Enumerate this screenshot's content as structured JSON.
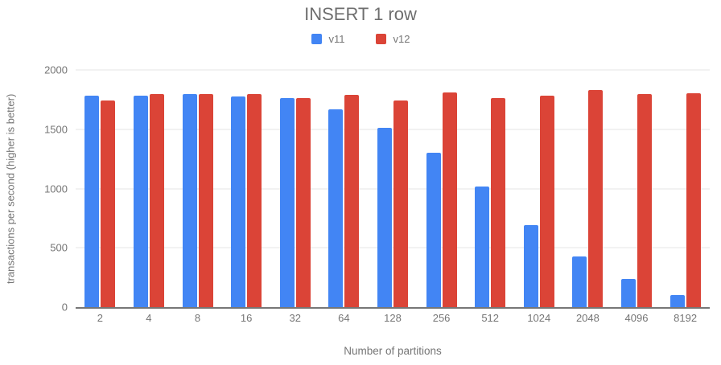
{
  "chart_data": {
    "type": "bar",
    "title": "INSERT 1 row",
    "xlabel": "Number of partitions",
    "ylabel": "transactions per second (higher is better)",
    "categories": [
      "2",
      "4",
      "8",
      "16",
      "32",
      "64",
      "128",
      "256",
      "512",
      "1024",
      "2048",
      "4096",
      "8192"
    ],
    "series": [
      {
        "name": "v11",
        "color": "#4285f4",
        "values": [
          1785,
          1785,
          1795,
          1775,
          1760,
          1670,
          1515,
          1305,
          1020,
          695,
          430,
          235,
          105
        ]
      },
      {
        "name": "v12",
        "color": "#db4437",
        "values": [
          1745,
          1795,
          1795,
          1795,
          1760,
          1790,
          1740,
          1810,
          1760,
          1785,
          1830,
          1795,
          1805
        ]
      }
    ],
    "ylim": [
      0,
      2000
    ],
    "y_ticks": [
      0,
      500,
      1000,
      1500,
      2000
    ],
    "grid": true,
    "legend_position": "top"
  }
}
